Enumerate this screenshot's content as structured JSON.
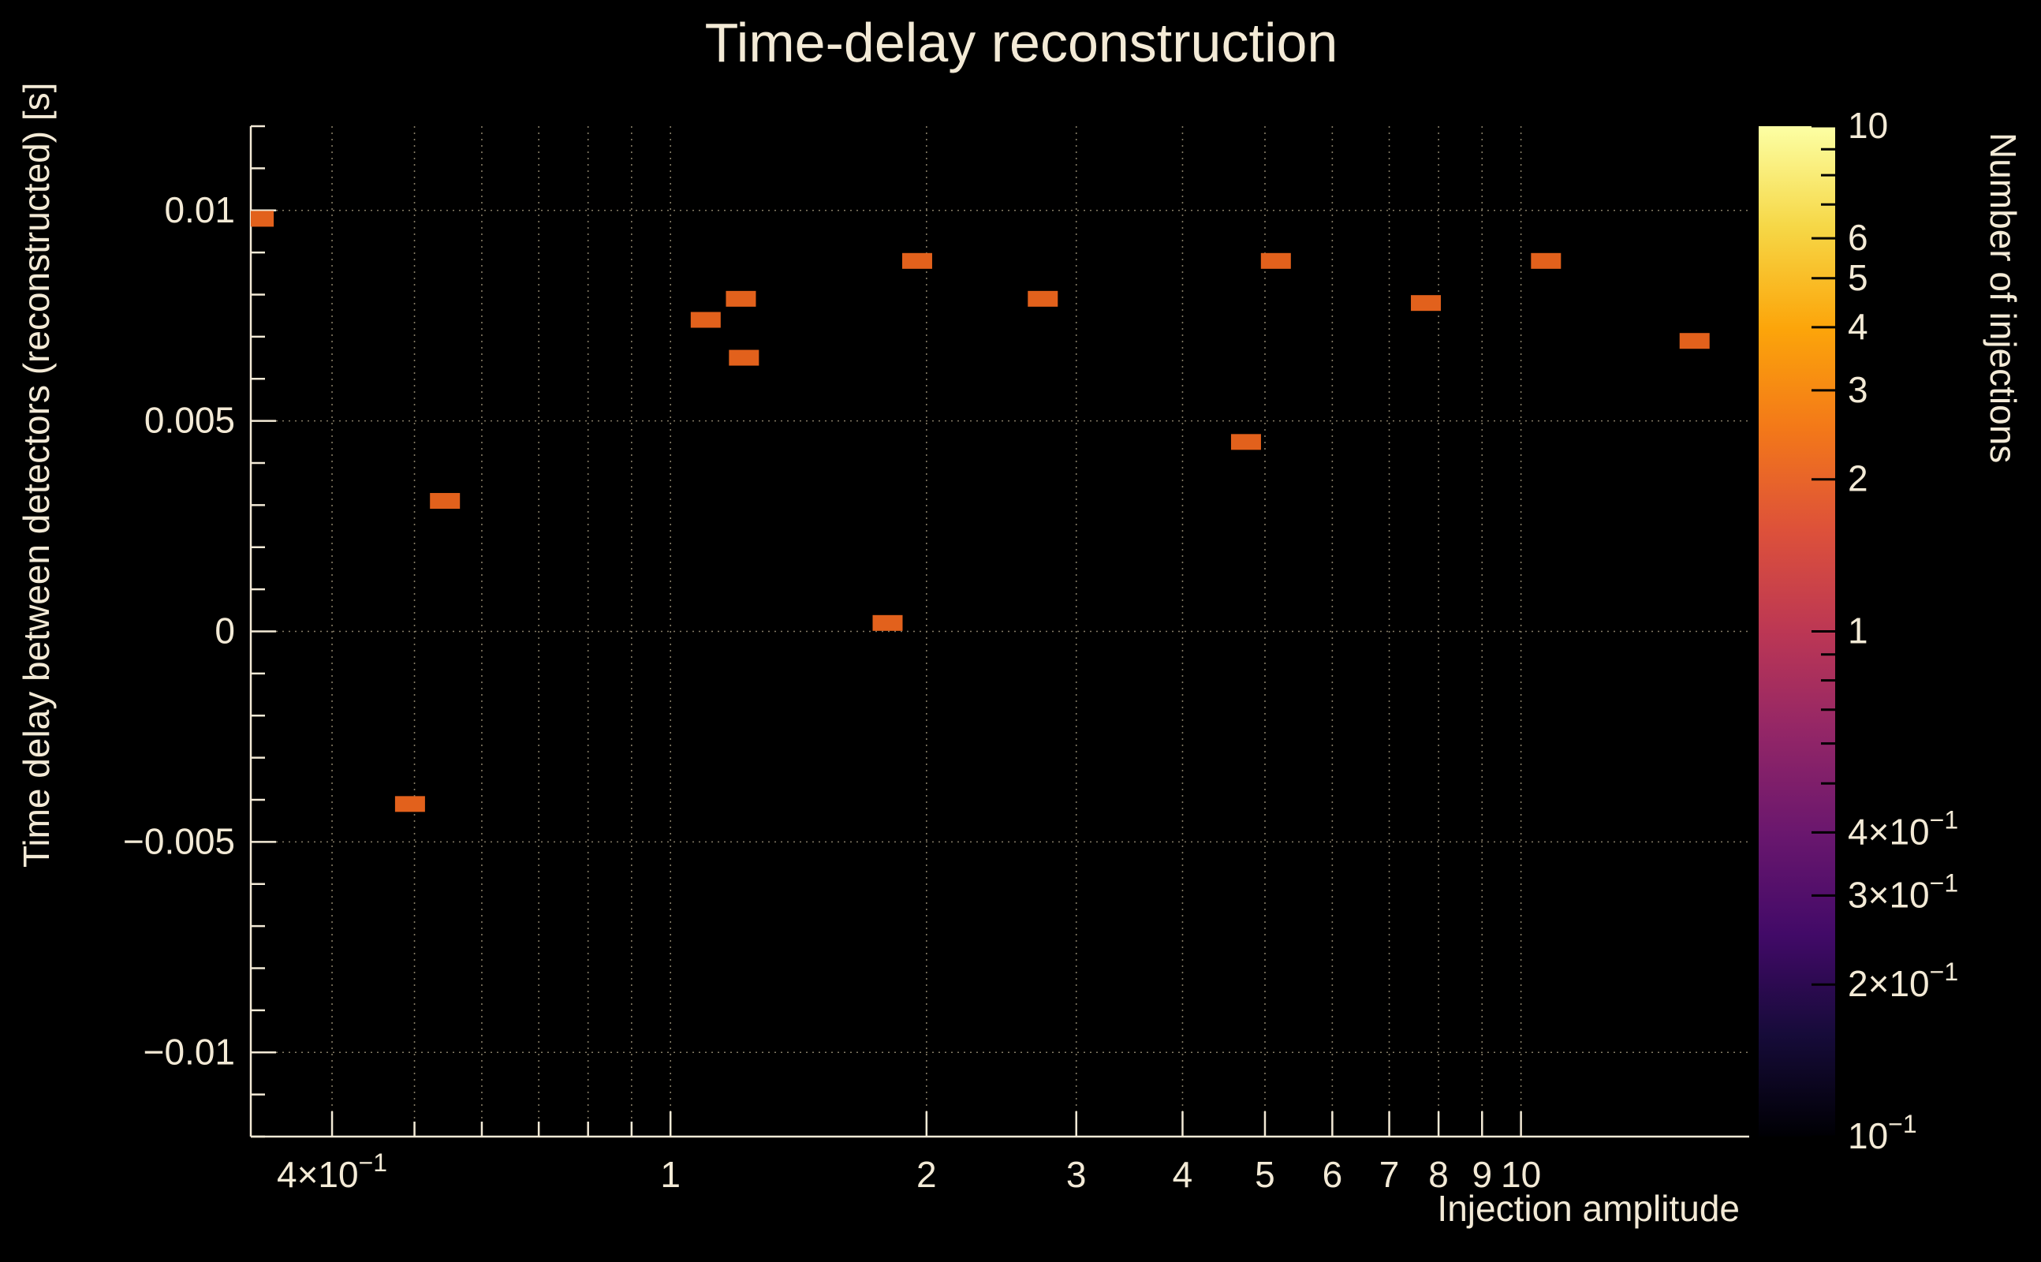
{
  "chart_data": {
    "type": "heatmap",
    "title": "Time-delay reconstruction",
    "xlabel": "Injection amplitude",
    "ylabel": "Time delay between detectors (reconstructed) [s]",
    "zlabel": "Number of injections",
    "xscale": "log",
    "yscale": "linear",
    "zscale": "log",
    "xlim": [
      0.321,
      18.55
    ],
    "ylim": [
      -0.012,
      0.012
    ],
    "zlim": [
      0.1,
      10
    ],
    "grid": true,
    "legend_position": "right-colorbar",
    "background_color": "#000000",
    "text_color": "#f3ead6",
    "axis_color": "#f3ead6",
    "grid_color": "#cdbf9d",
    "marker_color": "#e2611c",
    "points": [
      {
        "x": 0.328,
        "y": 0.0098,
        "count": 1
      },
      {
        "x": 0.494,
        "y": -0.0041,
        "count": 1
      },
      {
        "x": 0.543,
        "y": 0.0031,
        "count": 1
      },
      {
        "x": 1.1,
        "y": 0.0074,
        "count": 1
      },
      {
        "x": 1.21,
        "y": 0.0079,
        "count": 1
      },
      {
        "x": 1.22,
        "y": 0.0065,
        "count": 1
      },
      {
        "x": 1.8,
        "y": 0.0002,
        "count": 1
      },
      {
        "x": 1.95,
        "y": 0.0088,
        "count": 1
      },
      {
        "x": 2.74,
        "y": 0.0079,
        "count": 1
      },
      {
        "x": 4.75,
        "y": 0.0045,
        "count": 1
      },
      {
        "x": 5.15,
        "y": 0.0088,
        "count": 1
      },
      {
        "x": 7.73,
        "y": 0.0078,
        "count": 1
      },
      {
        "x": 10.7,
        "y": 0.0088,
        "count": 1
      },
      {
        "x": 16.0,
        "y": 0.0069,
        "count": 1
      }
    ],
    "x_ticks": [
      {
        "v": 0.4,
        "base": "4×10",
        "exp": "−1"
      },
      {
        "v": 0.5
      },
      {
        "v": 0.6
      },
      {
        "v": 0.7
      },
      {
        "v": 0.8
      },
      {
        "v": 0.9
      },
      {
        "v": 1,
        "base": "1"
      },
      {
        "v": 2,
        "base": "2"
      },
      {
        "v": 3,
        "base": "3"
      },
      {
        "v": 4,
        "base": "4"
      },
      {
        "v": 5,
        "base": "5"
      },
      {
        "v": 6,
        "base": "6"
      },
      {
        "v": 7,
        "base": "7"
      },
      {
        "v": 8,
        "base": "8"
      },
      {
        "v": 9,
        "base": "9"
      },
      {
        "v": 10,
        "base": "10"
      }
    ],
    "y_major_ticks": [
      {
        "v": 0.01,
        "label": "0.01"
      },
      {
        "v": 0.005,
        "label": "0.005"
      },
      {
        "v": 0,
        "label": "0"
      },
      {
        "v": -0.005,
        "label": "−0.005"
      },
      {
        "v": -0.01,
        "label": "−0.01"
      }
    ],
    "y_minor_step": 0.001,
    "colorbar": {
      "colormap_stops": [
        "#000004",
        "#160b39",
        "#420a68",
        "#6a176e",
        "#932667",
        "#bc3754",
        "#dd513a",
        "#f37819",
        "#fca50a",
        "#f6d746",
        "#fcffa4"
      ],
      "ticks": [
        {
          "v": 10,
          "base": "10"
        },
        {
          "v": 6,
          "base": "6"
        },
        {
          "v": 5,
          "base": "5"
        },
        {
          "v": 4,
          "base": "4"
        },
        {
          "v": 3,
          "base": "3"
        },
        {
          "v": 2,
          "base": "2"
        },
        {
          "v": 1,
          "base": "1"
        },
        {
          "v": 0.4,
          "base": "4×10",
          "exp": "−1"
        },
        {
          "v": 0.3,
          "base": "3×10",
          "exp": "−1"
        },
        {
          "v": 0.2,
          "base": "2×10",
          "exp": "−1"
        },
        {
          "v": 0.1,
          "base": "10",
          "exp": "−1"
        }
      ],
      "minor_ticks": [
        0.5,
        0.6,
        0.7,
        0.8,
        0.9,
        7,
        8,
        9
      ]
    }
  }
}
